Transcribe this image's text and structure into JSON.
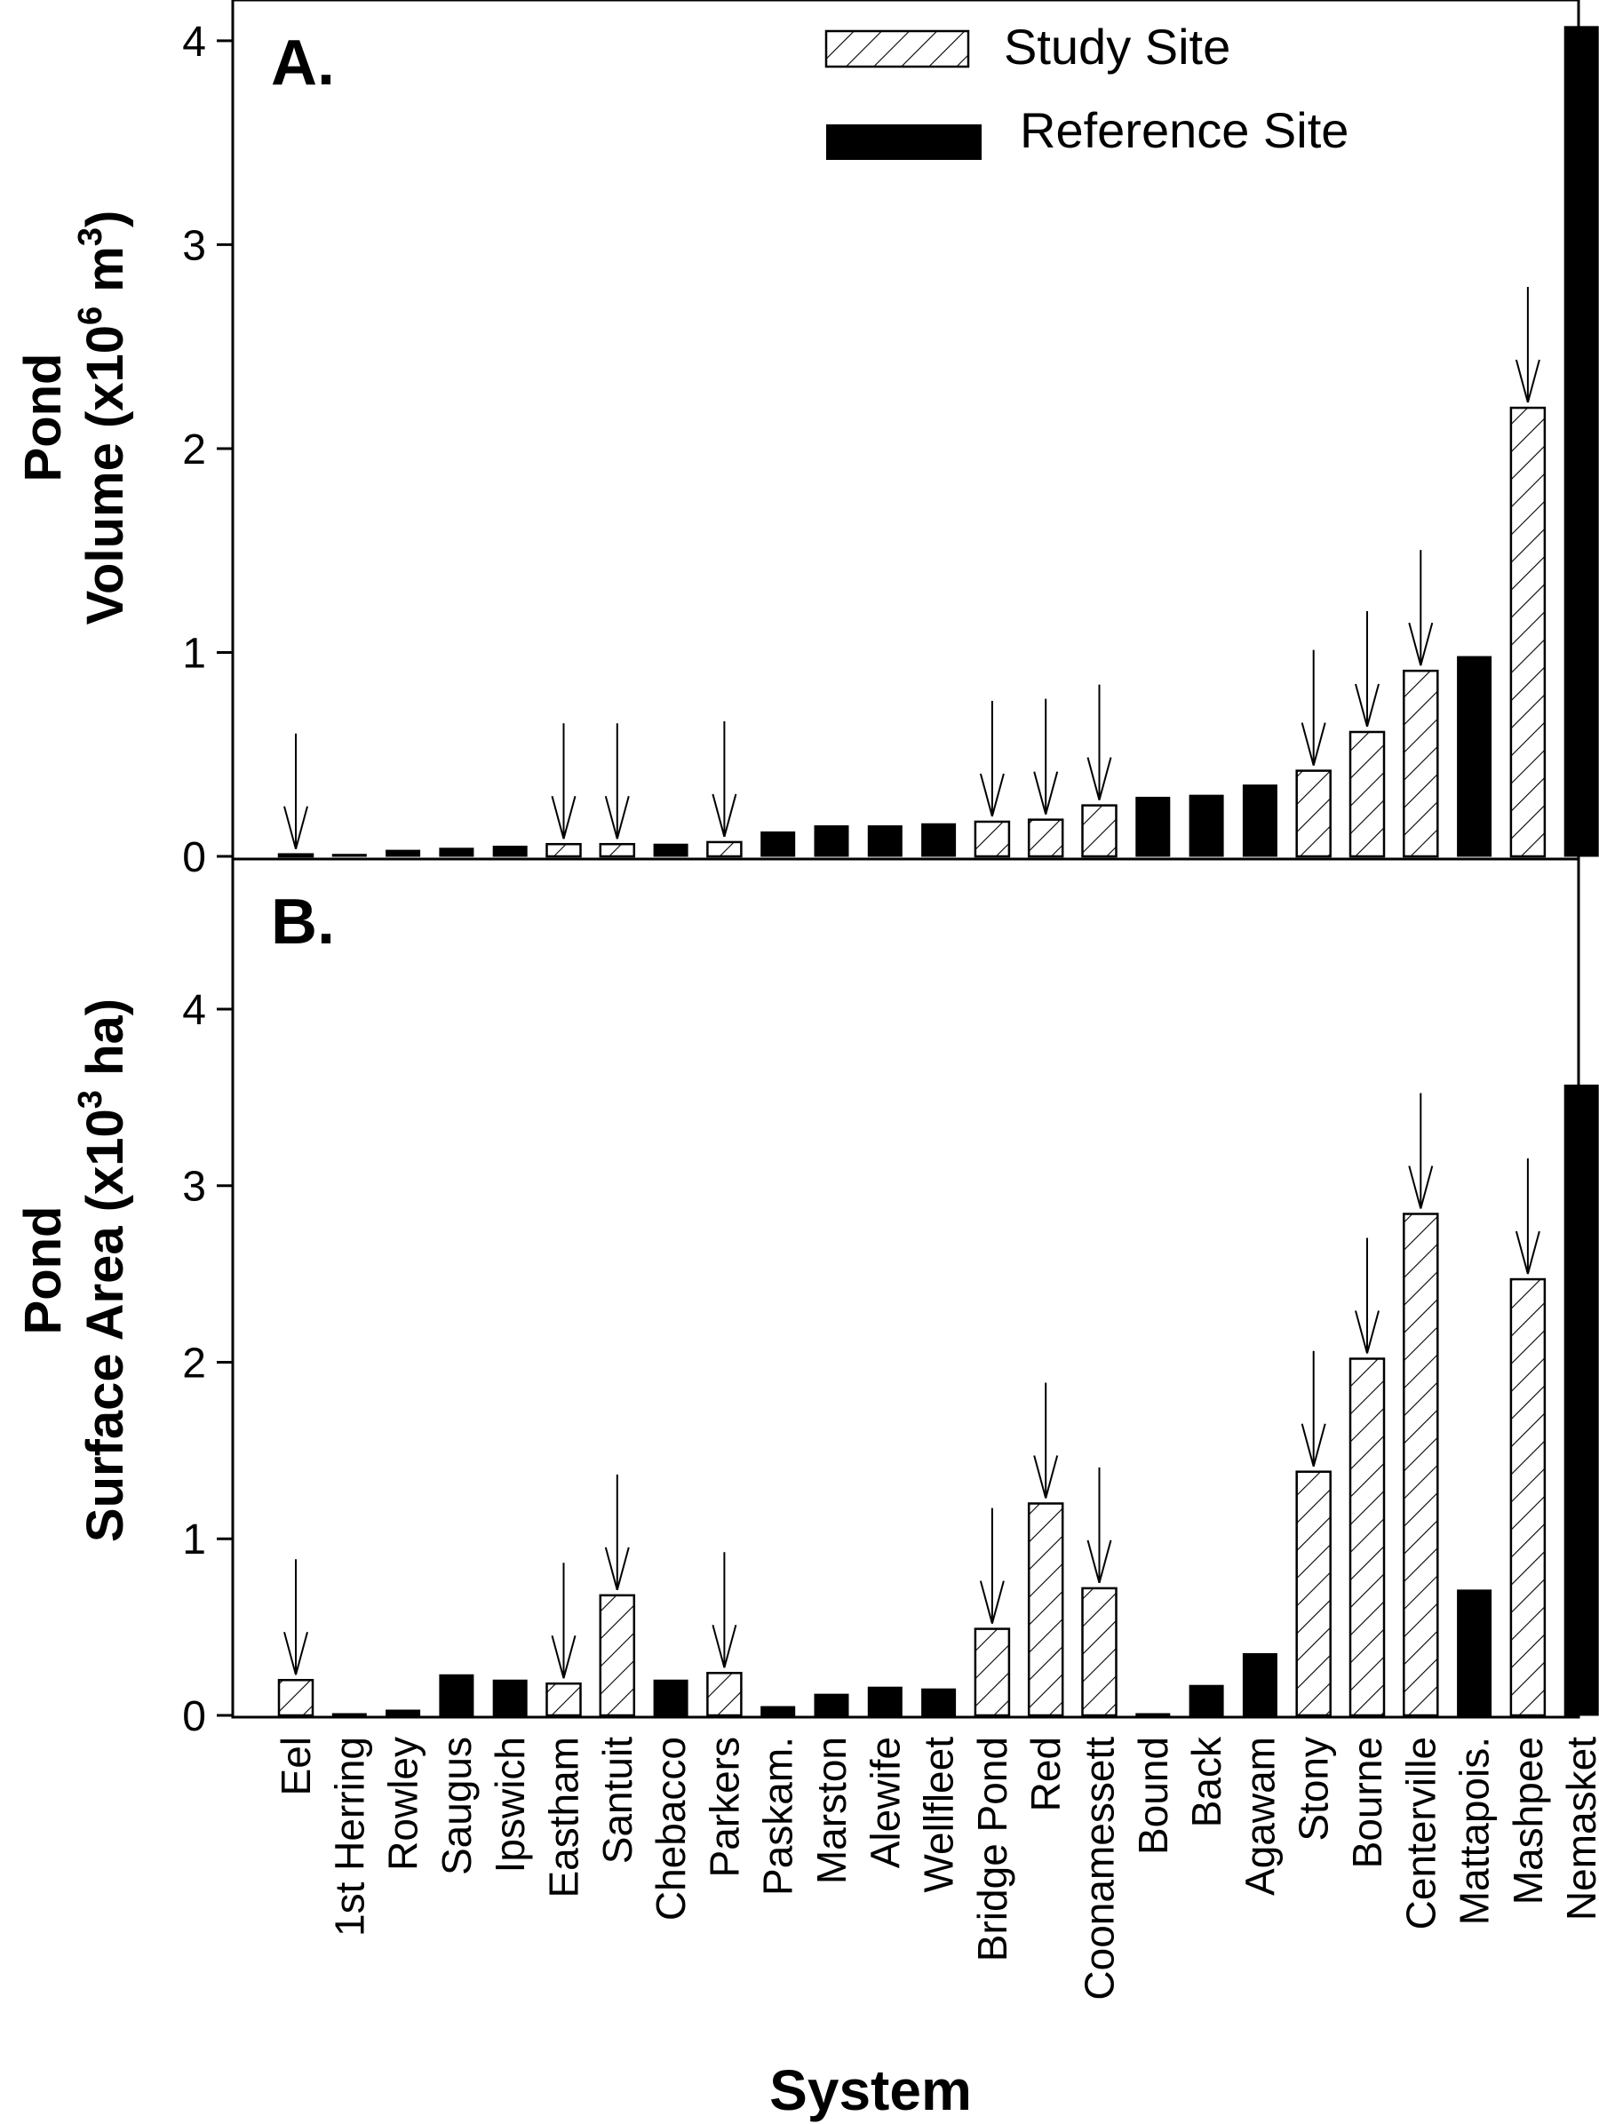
{
  "chart_data": {
    "type": "bar",
    "xlabel": "System",
    "categories": [
      "Eel",
      "1st Herring",
      "Rowley",
      "Saugus",
      "Ipswich",
      "Eastham",
      "Santuit",
      "Chebacco",
      "Parkers",
      "Paskam.",
      "Marston",
      "Alewife",
      "Wellfleet",
      "Bridge Pond",
      "Red",
      "Coonamessett",
      "Bound",
      "Back",
      "Agawam",
      "Stony",
      "Bourne",
      "Centerville",
      "Mattapois.",
      "Mashpee",
      "Nemasket"
    ],
    "site_type": [
      "study",
      "reference",
      "reference",
      "reference",
      "reference",
      "study",
      "study",
      "reference",
      "study",
      "reference",
      "reference",
      "reference",
      "reference",
      "study",
      "study",
      "study",
      "reference",
      "reference",
      "reference",
      "study",
      "study",
      "study",
      "reference",
      "study",
      "reference"
    ],
    "arrows": [
      true,
      false,
      false,
      false,
      false,
      true,
      true,
      false,
      true,
      false,
      false,
      false,
      false,
      true,
      true,
      true,
      false,
      false,
      false,
      true,
      true,
      true,
      false,
      true,
      false
    ],
    "legend": [
      {
        "label": "Study Site",
        "style": "hatched"
      },
      {
        "label": "Reference Site",
        "style": "solid"
      }
    ],
    "legend_position": "top-right",
    "colors": {
      "reference": "#000000",
      "study_fill": "#ffffff",
      "hatch": "#000000"
    },
    "panels": [
      {
        "panel": "A.",
        "ylabel_line1": "Pond",
        "ylabel_line2": "Volume (x10",
        "ylabel_sup1": "6",
        "ylabel_mid": " m",
        "ylabel_sup2": "3",
        "ylabel_end": ")",
        "ylim": [
          0,
          4.2
        ],
        "yticks": [
          0,
          1,
          2,
          3,
          4
        ],
        "values": [
          0.01,
          0.01,
          0.03,
          0.04,
          0.05,
          0.06,
          0.06,
          0.06,
          0.07,
          0.12,
          0.15,
          0.15,
          0.16,
          0.17,
          0.18,
          0.25,
          0.29,
          0.3,
          0.35,
          0.42,
          0.61,
          0.91,
          0.98,
          2.2,
          4.07
        ]
      },
      {
        "panel": "B.",
        "ylabel_line1": "Pond",
        "ylabel_line2": "Surface Area (x10",
        "ylabel_sup1": "3",
        "ylabel_mid": " ha",
        "ylabel_sup2": "",
        "ylabel_end": ")",
        "ylim": [
          0,
          4.85
        ],
        "yticks": [
          0,
          1,
          2,
          3,
          4
        ],
        "values": [
          0.2,
          0.01,
          0.03,
          0.23,
          0.2,
          0.18,
          0.68,
          0.2,
          0.24,
          0.05,
          0.12,
          0.16,
          0.15,
          0.49,
          1.2,
          0.72,
          0.01,
          0.17,
          0.35,
          1.38,
          2.02,
          2.84,
          0.71,
          2.47,
          3.57
        ]
      }
    ]
  }
}
